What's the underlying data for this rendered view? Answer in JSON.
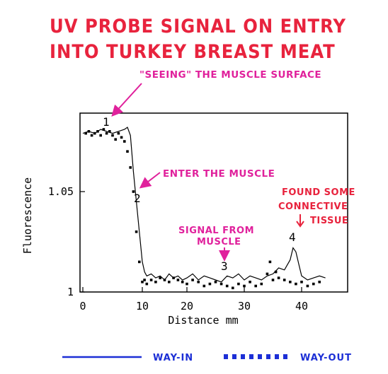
{
  "title_lines": [
    "UV PROBE SIGNAL ON ENTRY",
    "INTO TURKEY BREAST MEAT"
  ],
  "colors": {
    "title": "#e8233d",
    "annotation": "#e0219c",
    "way_in": "#1c2fd6",
    "way_out": "#1c2fd6",
    "axes": "#000000"
  },
  "annotations": {
    "surface": "\"SEEING\" THE MUSCLE SURFACE",
    "enter": "ENTER THE MUSCLE",
    "signal_1": "SIGNAL FROM",
    "signal_2": "MUSCLE",
    "found_1": "FOUND SOME",
    "found_2": "CONNECTIVE",
    "found_3": "TISSUE"
  },
  "point_labels": [
    "1",
    "2",
    "3",
    "4"
  ],
  "legend": {
    "way_in": "WAY-IN",
    "way_out": "WAY-OUT"
  },
  "chart_data": {
    "type": "line",
    "xlabel": "Distance mm",
    "ylabel": "Fluorescence",
    "xlim": [
      0,
      45
    ],
    "ylim": [
      1,
      1.09
    ],
    "xticks": [
      "0",
      "10",
      "20",
      "30",
      "40"
    ],
    "yticks": [
      "1",
      "1.05"
    ],
    "grid": false,
    "series": [
      {
        "name": "WAY-IN",
        "style": "line",
        "x": [
          0,
          1,
          2,
          3,
          4,
          5,
          6,
          7,
          7.5,
          8,
          8.5,
          9,
          9.5,
          10,
          10.5,
          11,
          12,
          13,
          14,
          15,
          16,
          17,
          18,
          19,
          20,
          21,
          22,
          23,
          24,
          25,
          26,
          27,
          28,
          29,
          30,
          31,
          32,
          33,
          34,
          35,
          36,
          37,
          38,
          38.5,
          39,
          39.5,
          40,
          41,
          42,
          43,
          44
        ],
        "y": [
          1.079,
          1.08,
          1.079,
          1.081,
          1.08,
          1.079,
          1.08,
          1.081,
          1.082,
          1.078,
          1.06,
          1.045,
          1.03,
          1.015,
          1.01,
          1.008,
          1.009,
          1.007,
          1.008,
          1.006,
          1.009,
          1.007,
          1.008,
          1.006,
          1.007,
          1.009,
          1.006,
          1.008,
          1.007,
          1.006,
          1.005,
          1.008,
          1.007,
          1.009,
          1.006,
          1.008,
          1.007,
          1.006,
          1.008,
          1.009,
          1.012,
          1.011,
          1.016,
          1.022,
          1.02,
          1.014,
          1.008,
          1.006,
          1.007,
          1.008,
          1.007
        ]
      },
      {
        "name": "WAY-OUT",
        "style": "points",
        "x": [
          0.5,
          1,
          1.5,
          2,
          2.5,
          3,
          3.5,
          4,
          4.5,
          5,
          5.5,
          6,
          6.5,
          7,
          7.5,
          8,
          8.5,
          9,
          9.5,
          10,
          10.5,
          11,
          12,
          13,
          14,
          15,
          16,
          17,
          18,
          19,
          20,
          21,
          22,
          23,
          24,
          25,
          26,
          27,
          28,
          29,
          30,
          31,
          32,
          33,
          34,
          34.5,
          35,
          35.5,
          36,
          37,
          38,
          39,
          40,
          41,
          42,
          43
        ],
        "y": [
          1.079,
          1.08,
          1.078,
          1.079,
          1.08,
          1.078,
          1.081,
          1.079,
          1.08,
          1.078,
          1.076,
          1.079,
          1.077,
          1.075,
          1.07,
          1.062,
          1.05,
          1.03,
          1.015,
          1.005,
          1.006,
          1.004,
          1.006,
          1.005,
          1.007,
          1.006,
          1.005,
          1.007,
          1.006,
          1.005,
          1.004,
          1.006,
          1.005,
          1.003,
          1.004,
          1.005,
          1.004,
          1.003,
          1.002,
          1.004,
          1.003,
          1.005,
          1.003,
          1.004,
          1.009,
          1.015,
          1.006,
          1.01,
          1.007,
          1.006,
          1.005,
          1.004,
          1.005,
          1.003,
          1.004,
          1.005
        ]
      }
    ]
  }
}
